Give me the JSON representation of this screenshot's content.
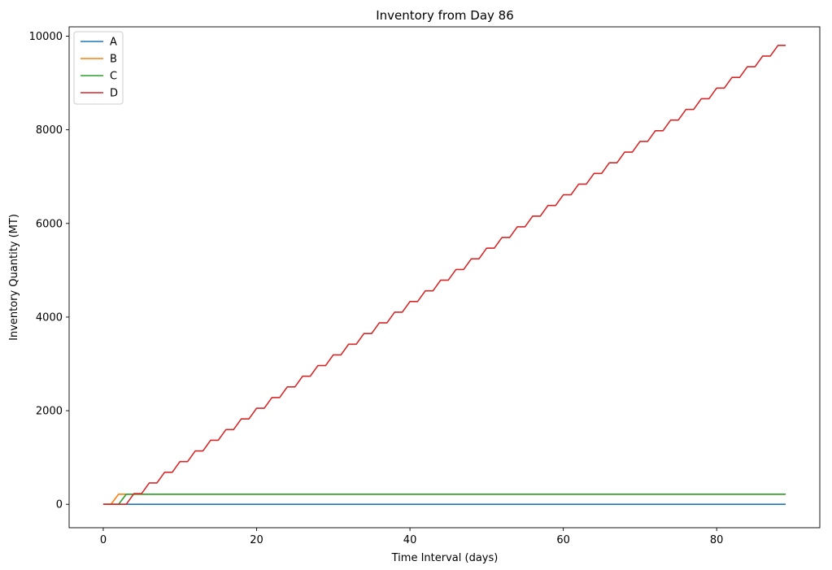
{
  "chart_data": {
    "type": "line",
    "title": "Inventory from Day 86",
    "xlabel": "Time Interval (days)",
    "ylabel": "Inventory Quantity (MT)",
    "xlim": [
      -4.45,
      93.45
    ],
    "ylim": [
      -500,
      10200
    ],
    "xticks": [
      0,
      20,
      40,
      60,
      80
    ],
    "yticks": [
      0,
      2000,
      4000,
      6000,
      8000,
      10000
    ],
    "grid": false,
    "legend_position": "top-left",
    "series": [
      {
        "name": "A",
        "color": "#1f77b4",
        "x": [
          0,
          89
        ],
        "y": [
          0,
          0
        ]
      },
      {
        "name": "B",
        "color": "#ff7f0e",
        "x": [
          0,
          1,
          2,
          89
        ],
        "y": [
          0,
          0,
          216,
          216
        ]
      },
      {
        "name": "C",
        "color": "#2ca02c",
        "x": [
          0,
          2,
          3,
          89
        ],
        "y": [
          0,
          0,
          216,
          216
        ]
      },
      {
        "name": "D",
        "color": "#d62728",
        "x": [
          0,
          1,
          2,
          3,
          4,
          5,
          6,
          7,
          8,
          9,
          10,
          11,
          12,
          13,
          14,
          15,
          16,
          17,
          18,
          19,
          20,
          21,
          22,
          23,
          24,
          25,
          26,
          27,
          28,
          29,
          30,
          31,
          32,
          33,
          34,
          35,
          36,
          37,
          38,
          39,
          40,
          41,
          42,
          43,
          44,
          45,
          46,
          47,
          48,
          49,
          50,
          51,
          52,
          53,
          54,
          55,
          56,
          57,
          58,
          59,
          60,
          61,
          62,
          63,
          64,
          65,
          66,
          67,
          68,
          69,
          70,
          71,
          72,
          73,
          74,
          75,
          76,
          77,
          78,
          79,
          80,
          81,
          82,
          83,
          84,
          85,
          86,
          87,
          88,
          89
        ],
        "y": [
          0,
          0,
          0,
          0,
          228,
          228,
          456,
          456,
          684,
          684,
          912,
          912,
          1140,
          1140,
          1368,
          1368,
          1596,
          1596,
          1824,
          1824,
          2052,
          2052,
          2280,
          2280,
          2508,
          2508,
          2736,
          2736,
          2964,
          2964,
          3192,
          3192,
          3420,
          3420,
          3648,
          3648,
          3876,
          3876,
          4104,
          4104,
          4332,
          4332,
          4560,
          4560,
          4788,
          4788,
          5016,
          5016,
          5244,
          5244,
          5472,
          5472,
          5700,
          5700,
          5928,
          5928,
          6156,
          6156,
          6384,
          6384,
          6612,
          6612,
          6840,
          6840,
          7068,
          7068,
          7296,
          7296,
          7524,
          7524,
          7752,
          7752,
          7980,
          7980,
          8208,
          8208,
          8436,
          8436,
          8664,
          8664,
          8892,
          8892,
          9120,
          9120,
          9348,
          9348,
          9576,
          9576,
          9804,
          9804
        ]
      }
    ]
  }
}
